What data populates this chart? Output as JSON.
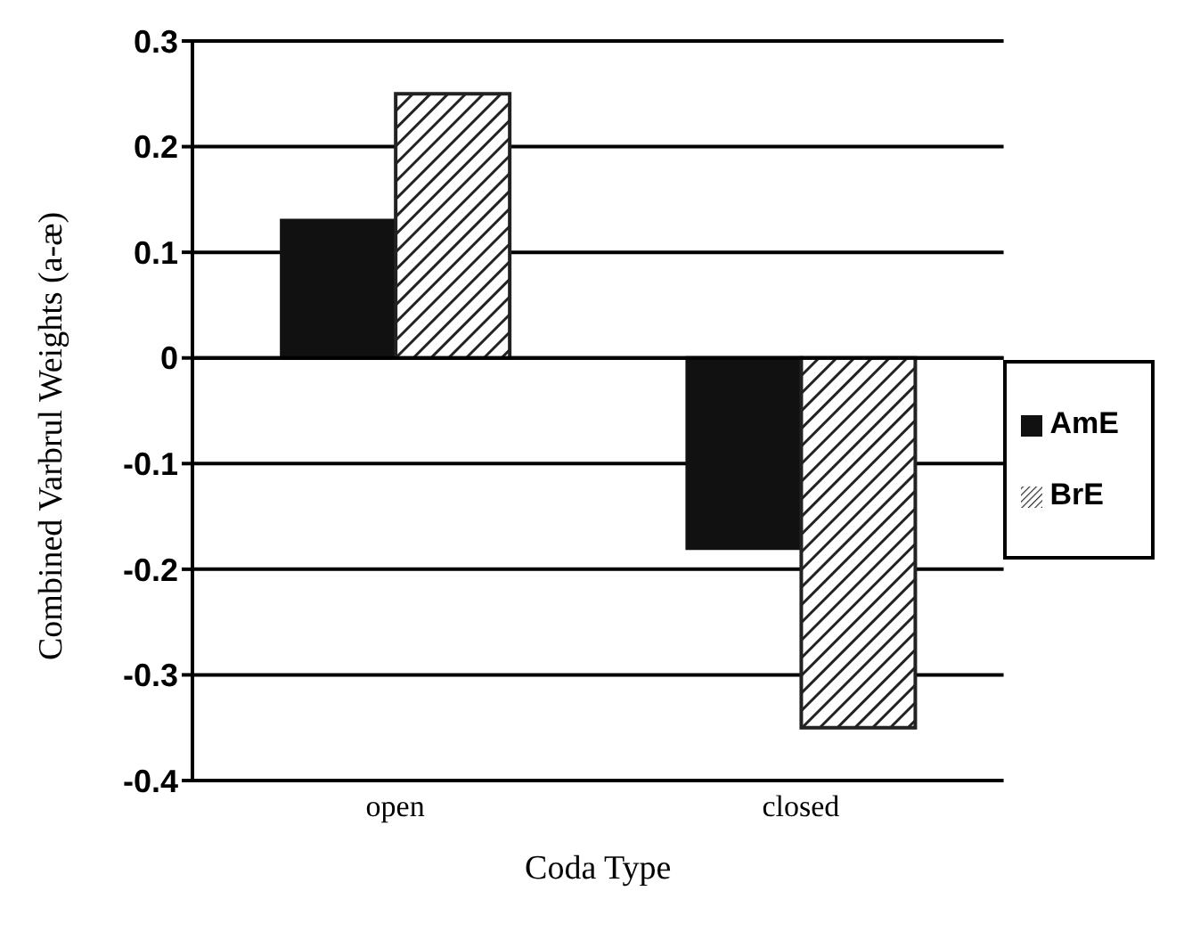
{
  "chart_data": {
    "type": "bar",
    "xlabel": "Coda Type",
    "ylabel": "Combined Varbrul Weights (a-æ)",
    "categories": [
      "open",
      "closed"
    ],
    "series": [
      {
        "name": "AmE",
        "color": "#111111",
        "values": [
          0.13,
          -0.18
        ]
      },
      {
        "name": "BrE",
        "color": "#222222",
        "values": [
          0.25,
          -0.35
        ]
      }
    ],
    "ylim": [
      -0.4,
      0.3
    ],
    "yticks": [
      {
        "value": -0.4,
        "label": "-0.4"
      },
      {
        "value": -0.3,
        "label": "-0.3"
      },
      {
        "value": -0.2,
        "label": "-0.2"
      },
      {
        "value": -0.1,
        "label": "-0.1"
      },
      {
        "value": 0,
        "label": "0"
      },
      {
        "value": 0.1,
        "label": "0.1"
      },
      {
        "value": 0.2,
        "label": "0.2"
      },
      {
        "value": 0.3,
        "label": "0.3"
      }
    ],
    "grid": "y",
    "legend": "right"
  }
}
